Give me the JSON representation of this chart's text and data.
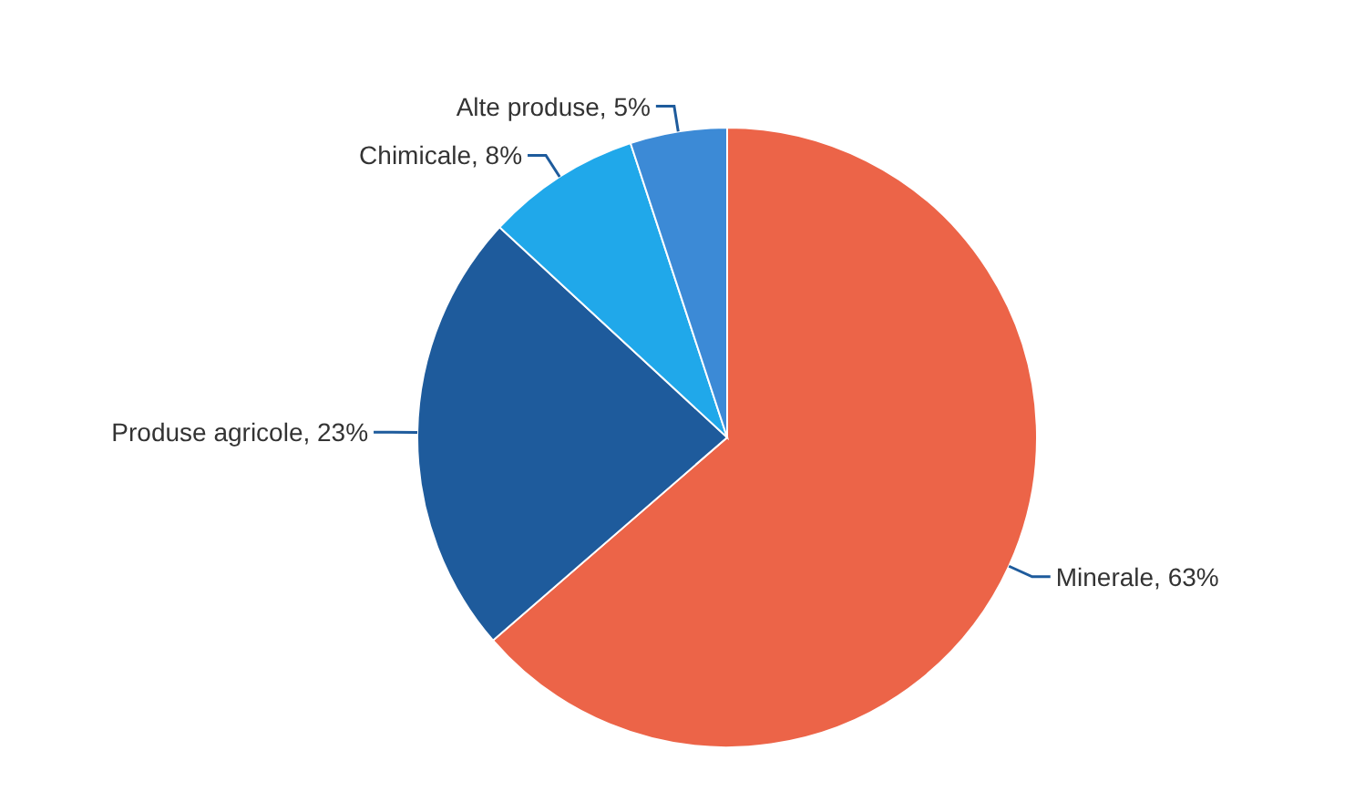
{
  "chart_data": {
    "type": "pie",
    "categories": [
      "Minerale",
      "Produse agricole",
      "Chimicale",
      "Alte produse"
    ],
    "values": [
      63,
      23,
      8,
      5
    ],
    "value_labels": [
      ", 63%",
      ", 23%",
      ", 8%",
      ", 5%"
    ],
    "colors": [
      "#ec6448",
      "#1e5b9c",
      "#20a8ea",
      "#3c8ad6"
    ]
  }
}
